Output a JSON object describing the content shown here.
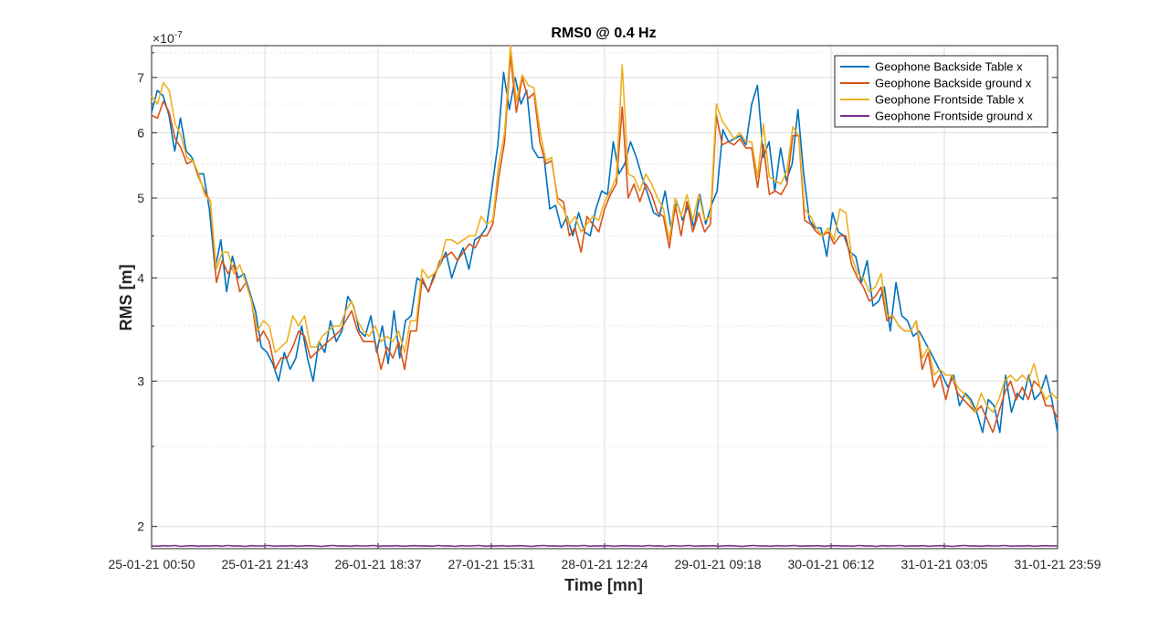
{
  "chart_data": {
    "type": "line",
    "title": "RMS0 @ 0.4 Hz",
    "xlabel": "Time [mn]",
    "ylabel": "RMS [m]",
    "yscale": "log",
    "y_exponent_base": "×10",
    "y_exponent_power": "-7",
    "ylim": [
      1.88,
      7.65
    ],
    "y_major_ticks": [
      2,
      3,
      4,
      5,
      6,
      7
    ],
    "y_minor_ticks": [
      2.5,
      3.5,
      4.5,
      5.5,
      6.5,
      7.5
    ],
    "xlim": [
      0,
      1
    ],
    "xtick_labels": [
      "25-01-21 00:50",
      "25-01-21 21:43",
      "26-01-21 18:37",
      "27-01-21 15:31",
      "28-01-21 12:24",
      "29-01-21 09:18",
      "30-01-21 06:12",
      "31-01-21 03:05",
      "31-01-21 23:59"
    ],
    "grid": true,
    "legend_position": "top-right",
    "series": [
      {
        "name": "Geophone Backside Table x",
        "color": "#0072BD",
        "y": [
          6.35,
          6.75,
          6.65,
          6.3,
          5.7,
          6.25,
          5.7,
          5.6,
          5.35,
          5.35,
          4.85,
          4.1,
          4.45,
          3.85,
          4.25,
          4.0,
          4.05,
          3.85,
          3.65,
          3.3,
          3.25,
          3.15,
          3.0,
          3.25,
          3.1,
          3.2,
          3.5,
          3.2,
          3.0,
          3.35,
          3.25,
          3.55,
          3.35,
          3.45,
          3.8,
          3.7,
          3.45,
          3.4,
          3.6,
          3.25,
          3.5,
          3.15,
          3.65,
          3.2,
          3.55,
          3.6,
          4.0,
          3.95,
          3.85,
          4.05,
          4.15,
          4.3,
          4.0,
          4.2,
          4.35,
          4.1,
          4.45,
          4.5,
          4.6,
          5.15,
          5.8,
          7.1,
          6.4,
          7.0,
          6.5,
          6.75,
          5.75,
          5.6,
          5.6,
          4.85,
          4.9,
          4.6,
          4.75,
          4.5,
          4.8,
          4.55,
          4.5,
          4.85,
          5.1,
          5.05,
          5.85,
          5.35,
          5.5,
          5.85,
          5.6,
          5.3,
          5.05,
          4.8,
          4.75,
          5.1,
          4.6,
          4.95,
          4.7,
          4.9,
          4.6,
          5.05,
          4.65,
          4.9,
          5.1,
          6.05,
          5.85,
          5.9,
          5.95,
          5.8,
          6.5,
          6.85,
          5.6,
          5.85,
          5.1,
          5.75,
          5.25,
          5.5,
          6.4,
          5.35,
          4.7,
          4.6,
          4.6,
          4.25,
          4.8,
          4.55,
          4.5,
          4.3,
          4.25,
          3.95,
          4.2,
          3.7,
          3.75,
          3.9,
          3.45,
          3.95,
          3.6,
          3.55,
          3.4,
          3.45,
          3.35,
          3.25,
          3.15,
          3.05,
          2.95,
          3.05,
          2.8,
          2.9,
          2.85,
          2.75,
          2.6,
          2.85,
          2.8,
          2.6,
          3.05,
          2.75,
          2.9,
          2.85,
          3.05,
          2.85,
          2.9,
          3.05,
          2.85,
          2.6
        ]
      },
      {
        "name": "Geophone Backside ground x",
        "color": "#D95319",
        "y": [
          6.3,
          6.25,
          6.55,
          6.35,
          5.9,
          5.75,
          5.5,
          5.55,
          5.3,
          5.1,
          4.95,
          3.95,
          4.2,
          4.05,
          4.15,
          3.85,
          3.95,
          3.75,
          3.35,
          3.45,
          3.35,
          3.1,
          3.2,
          3.2,
          3.3,
          3.45,
          3.4,
          3.2,
          3.25,
          3.3,
          3.35,
          3.4,
          3.45,
          3.55,
          3.65,
          3.45,
          3.35,
          3.35,
          3.35,
          3.1,
          3.3,
          3.2,
          3.35,
          3.1,
          3.45,
          3.45,
          4.0,
          3.85,
          4.0,
          4.2,
          4.25,
          4.3,
          4.2,
          4.3,
          4.4,
          4.35,
          4.5,
          4.5,
          4.65,
          5.3,
          5.85,
          7.45,
          6.35,
          7.0,
          6.6,
          6.7,
          5.85,
          5.5,
          5.55,
          5.0,
          4.95,
          4.5,
          4.6,
          4.3,
          4.75,
          4.65,
          4.55,
          4.85,
          5.05,
          5.2,
          6.45,
          5.0,
          5.2,
          4.95,
          5.2,
          5.05,
          4.8,
          4.75,
          4.35,
          4.9,
          4.5,
          4.95,
          4.55,
          4.8,
          4.55,
          4.65,
          6.3,
          5.8,
          5.85,
          5.8,
          5.9,
          5.75,
          5.75,
          5.15,
          5.8,
          5.05,
          5.1,
          5.05,
          5.2,
          5.95,
          5.95,
          4.7,
          4.65,
          4.55,
          4.5,
          4.55,
          4.4,
          4.5,
          4.5,
          4.15,
          4.0,
          3.9,
          3.75,
          3.8,
          3.9,
          3.55,
          3.6,
          3.5,
          3.45,
          3.45,
          3.55,
          3.1,
          3.25,
          2.95,
          3.05,
          2.85,
          3.05,
          2.9,
          2.85,
          2.8,
          2.75,
          2.8,
          2.7,
          2.6,
          2.75,
          2.9,
          3.0,
          2.85,
          2.95,
          2.85,
          3.0,
          2.95,
          2.8,
          2.8,
          2.7
        ]
      },
      {
        "name": "Geophone Frontside Table x",
        "color": "#EDB120",
        "y": [
          6.65,
          6.5,
          6.9,
          6.75,
          6.15,
          5.95,
          5.6,
          5.55,
          5.35,
          5.05,
          4.95,
          4.1,
          4.3,
          4.3,
          4.05,
          4.15,
          3.95,
          3.75,
          3.45,
          3.55,
          3.5,
          3.25,
          3.3,
          3.35,
          3.6,
          3.5,
          3.6,
          3.3,
          3.3,
          3.4,
          3.45,
          3.5,
          3.5,
          3.65,
          3.75,
          3.55,
          3.45,
          3.4,
          3.5,
          3.35,
          3.4,
          3.35,
          3.45,
          3.25,
          3.55,
          3.55,
          4.1,
          4.0,
          4.05,
          4.15,
          4.45,
          4.45,
          4.4,
          4.45,
          4.5,
          4.5,
          4.75,
          4.65,
          4.7,
          5.5,
          6.0,
          7.65,
          6.55,
          7.05,
          6.85,
          6.8,
          6.05,
          5.55,
          5.6,
          4.95,
          4.85,
          4.65,
          4.75,
          4.55,
          4.65,
          4.75,
          4.7,
          4.95,
          5.1,
          5.3,
          7.25,
          5.35,
          5.3,
          5.1,
          5.35,
          5.2,
          5.0,
          4.85,
          4.45,
          5.0,
          4.75,
          5.05,
          4.7,
          5.05,
          4.7,
          4.75,
          6.5,
          6.2,
          6.05,
          5.9,
          6.0,
          5.85,
          5.85,
          5.3,
          6.15,
          5.3,
          5.25,
          5.2,
          5.4,
          6.1,
          5.95,
          4.85,
          4.75,
          4.6,
          4.5,
          4.6,
          4.45,
          4.85,
          4.8,
          4.25,
          4.05,
          4.0,
          3.85,
          3.9,
          4.05,
          3.6,
          3.6,
          3.5,
          3.45,
          3.45,
          3.55,
          3.2,
          3.3,
          3.05,
          3.1,
          3.05,
          3.05,
          2.95,
          2.9,
          2.85,
          2.75,
          2.9,
          2.8,
          2.75,
          2.85,
          3.0,
          3.05,
          3.0,
          3.05,
          3.0,
          3.15,
          2.95,
          2.85,
          2.9,
          2.85
        ]
      },
      {
        "name": "Geophone Frontside ground x",
        "color": "#7E2F8E",
        "y": [
          1.895,
          1.893,
          1.896,
          1.894,
          1.897,
          1.892,
          1.895,
          1.896,
          1.893,
          1.895,
          1.894,
          1.896,
          1.893,
          1.897,
          1.894,
          1.895,
          1.892,
          1.896,
          1.894,
          1.895,
          1.897,
          1.893,
          1.895,
          1.894,
          1.896,
          1.893,
          1.895,
          1.896,
          1.894,
          1.892,
          1.895,
          1.897,
          1.894,
          1.895,
          1.893,
          1.896,
          1.894,
          1.895,
          1.897,
          1.893,
          1.895,
          1.894,
          1.896,
          1.893,
          1.895,
          1.896,
          1.894,
          1.895,
          1.893,
          1.897,
          1.894,
          1.895,
          1.892,
          1.896,
          1.894,
          1.895,
          1.897,
          1.893,
          1.895,
          1.894,
          1.896,
          1.893,
          1.895,
          1.896,
          1.894,
          1.892,
          1.895,
          1.897,
          1.894,
          1.895,
          1.893,
          1.896,
          1.894,
          1.895,
          1.897,
          1.893,
          1.895,
          1.894,
          1.896,
          1.893,
          1.895,
          1.896,
          1.894,
          1.895,
          1.893,
          1.897,
          1.894,
          1.895,
          1.892,
          1.896,
          1.894,
          1.895,
          1.897,
          1.893,
          1.895,
          1.894,
          1.896,
          1.893,
          1.895,
          1.896,
          1.894,
          1.892,
          1.895,
          1.897,
          1.894,
          1.895,
          1.893,
          1.896,
          1.894,
          1.895,
          1.897,
          1.893,
          1.895,
          1.894,
          1.896,
          1.893,
          1.895,
          1.896,
          1.894,
          1.895,
          1.893,
          1.897,
          1.894,
          1.895,
          1.892,
          1.896,
          1.894,
          1.895,
          1.897,
          1.893,
          1.895,
          1.894,
          1.896,
          1.893,
          1.895,
          1.896,
          1.894,
          1.892,
          1.895,
          1.897,
          1.894,
          1.895,
          1.893,
          1.896,
          1.894,
          1.895,
          1.897,
          1.893,
          1.895,
          1.894,
          1.896,
          1.893,
          1.895,
          1.896,
          1.894,
          1.895
        ]
      }
    ]
  }
}
